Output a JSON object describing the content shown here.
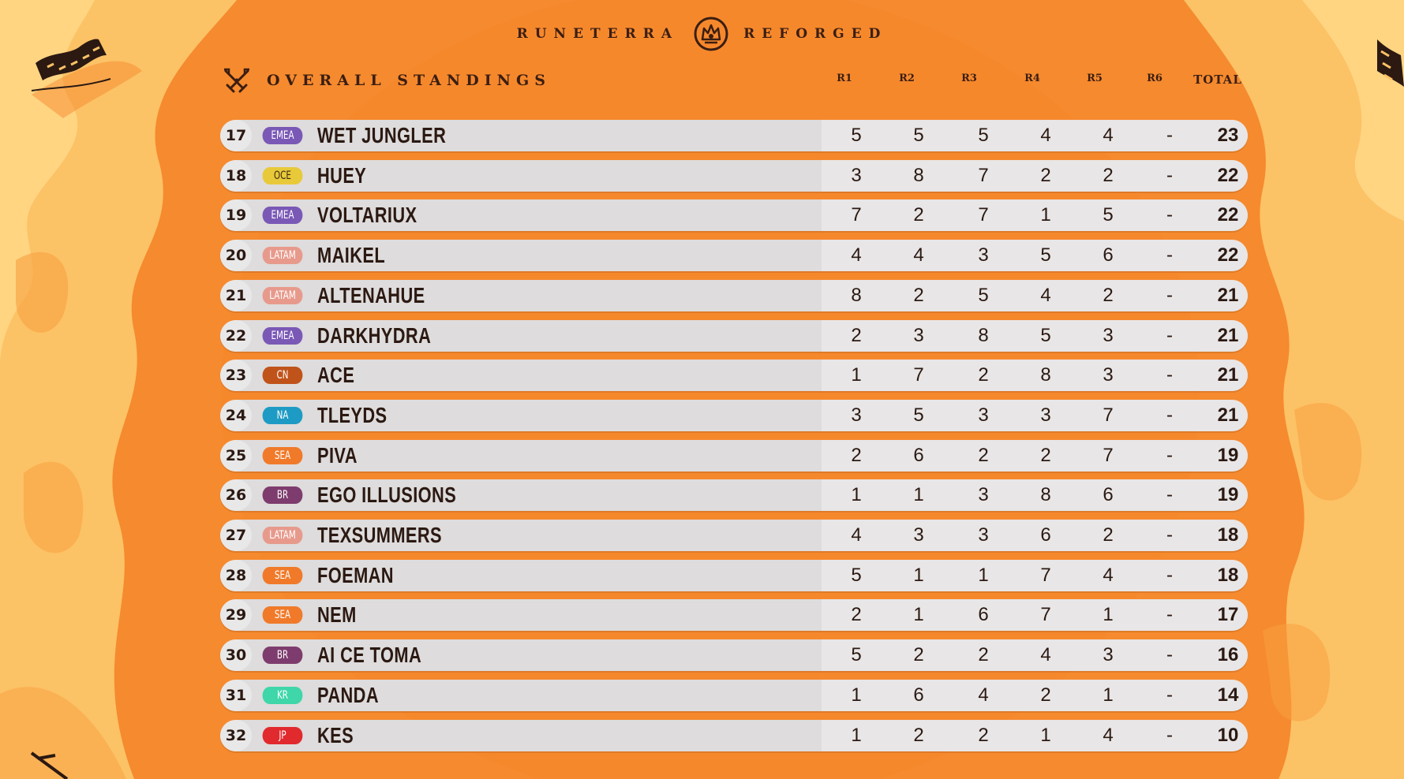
{
  "header": {
    "brand_left": "RUNETERRA",
    "brand_right": "REFORGED",
    "section_title": "OVERALL STANDINGS"
  },
  "columns": [
    "R1",
    "R2",
    "R3",
    "R4",
    "R5",
    "R6",
    "TOTAL"
  ],
  "colors": {
    "background": "#f68a2e",
    "flame_light": "#fcc266",
    "row": "#dedcdc",
    "text_dark": "#2b1912"
  },
  "region_colors": {
    "EMEA": "#7a58b6",
    "OCE": "#e8c93a",
    "LATAM": "#e79a8c",
    "CN": "#c0531a",
    "NA": "#1e9bc4",
    "SEA": "#f07a2a",
    "BR": "#7e3c6e",
    "KR": "#3fd6a9",
    "JP": "#e12a2e"
  },
  "standings": [
    {
      "rank": "17",
      "region": "EMEA",
      "player": "WET JUNGLER",
      "r1": "5",
      "r2": "5",
      "r3": "5",
      "r4": "4",
      "r5": "4",
      "r6": "-",
      "total": "23"
    },
    {
      "rank": "18",
      "region": "OCE",
      "player": "HUEY",
      "r1": "3",
      "r2": "8",
      "r3": "7",
      "r4": "2",
      "r5": "2",
      "r6": "-",
      "total": "22"
    },
    {
      "rank": "19",
      "region": "EMEA",
      "player": "VOLTARIUX",
      "r1": "7",
      "r2": "2",
      "r3": "7",
      "r4": "1",
      "r5": "5",
      "r6": "-",
      "total": "22"
    },
    {
      "rank": "20",
      "region": "LATAM",
      "player": "MAIKEL",
      "r1": "4",
      "r2": "4",
      "r3": "3",
      "r4": "5",
      "r5": "6",
      "r6": "-",
      "total": "22"
    },
    {
      "rank": "21",
      "region": "LATAM",
      "player": "ALTENAHUE",
      "r1": "8",
      "r2": "2",
      "r3": "5",
      "r4": "4",
      "r5": "2",
      "r6": "-",
      "total": "21"
    },
    {
      "rank": "22",
      "region": "EMEA",
      "player": "DARKHYDRA",
      "r1": "2",
      "r2": "3",
      "r3": "8",
      "r4": "5",
      "r5": "3",
      "r6": "-",
      "total": "21"
    },
    {
      "rank": "23",
      "region": "CN",
      "player": "ACE",
      "r1": "1",
      "r2": "7",
      "r3": "2",
      "r4": "8",
      "r5": "3",
      "r6": "-",
      "total": "21"
    },
    {
      "rank": "24",
      "region": "NA",
      "player": "TLEYDS",
      "r1": "3",
      "r2": "5",
      "r3": "3",
      "r4": "3",
      "r5": "7",
      "r6": "-",
      "total": "21"
    },
    {
      "rank": "25",
      "region": "SEA",
      "player": "PIVA",
      "r1": "2",
      "r2": "6",
      "r3": "2",
      "r4": "2",
      "r5": "7",
      "r6": "-",
      "total": "19"
    },
    {
      "rank": "26",
      "region": "BR",
      "player": "EGO ILLUSIONS",
      "r1": "1",
      "r2": "1",
      "r3": "3",
      "r4": "8",
      "r5": "6",
      "r6": "-",
      "total": "19"
    },
    {
      "rank": "27",
      "region": "LATAM",
      "player": "TEXSUMMERS",
      "r1": "4",
      "r2": "3",
      "r3": "3",
      "r4": "6",
      "r5": "2",
      "r6": "-",
      "total": "18"
    },
    {
      "rank": "28",
      "region": "SEA",
      "player": "FOEMAN",
      "r1": "5",
      "r2": "1",
      "r3": "1",
      "r4": "7",
      "r5": "4",
      "r6": "-",
      "total": "18"
    },
    {
      "rank": "29",
      "region": "SEA",
      "player": "NEM",
      "r1": "2",
      "r2": "1",
      "r3": "6",
      "r4": "7",
      "r5": "1",
      "r6": "-",
      "total": "17"
    },
    {
      "rank": "30",
      "region": "BR",
      "player": "AI CE TOMA",
      "r1": "5",
      "r2": "2",
      "r3": "2",
      "r4": "4",
      "r5": "3",
      "r6": "-",
      "total": "16"
    },
    {
      "rank": "31",
      "region": "KR",
      "player": "PANDA",
      "r1": "1",
      "r2": "6",
      "r3": "4",
      "r4": "2",
      "r5": "1",
      "r6": "-",
      "total": "14"
    },
    {
      "rank": "32",
      "region": "JP",
      "player": "KES",
      "r1": "1",
      "r2": "2",
      "r3": "2",
      "r4": "1",
      "r5": "4",
      "r6": "-",
      "total": "10"
    }
  ]
}
